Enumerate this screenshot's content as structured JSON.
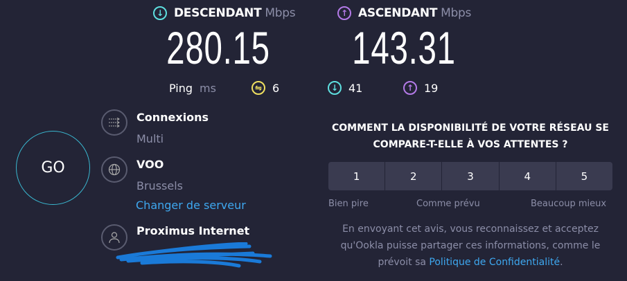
{
  "download": {
    "label": "DESCENDANT",
    "unit": "Mbps",
    "value": "280.15",
    "icon": "arrow-down-circle-icon",
    "color": "#5ee0e0"
  },
  "upload": {
    "label": "ASCENDANT",
    "unit": "Mbps",
    "value": "143.31",
    "icon": "arrow-up-circle-icon",
    "color": "#b47ae8"
  },
  "ping": {
    "label": "Ping",
    "unit": "ms",
    "idle": "6",
    "download": "41",
    "upload": "19",
    "idle_color": "#f0e060"
  },
  "go_label": "GO",
  "connections": {
    "label": "Connexions",
    "value": "Multi"
  },
  "server": {
    "label": "VOO",
    "location": "Brussels",
    "change_link": "Changer de serveur"
  },
  "provider": {
    "label": "Proximus Internet"
  },
  "survey": {
    "question_line1": "COMMENT LA DISPONIBILITÉ DE VOTRE RÉSEAU SE",
    "question_line2": "COMPARE-T-ELLE À VOS ATTENTES ?",
    "options": [
      "1",
      "2",
      "3",
      "4",
      "5"
    ],
    "low_label": "Bien pire",
    "mid_label": "Comme prévu",
    "high_label": "Beaucoup mieux",
    "disclaimer_line1": "En envoyant cet avis, vous reconnaissez et acceptez",
    "disclaimer_line2": "qu'Ookla puisse partager ces informations, comme le",
    "disclaimer_line3_pre": "prévoit sa ",
    "privacy_link": "Politique de Confidentialité",
    "disclaimer_end": "."
  }
}
